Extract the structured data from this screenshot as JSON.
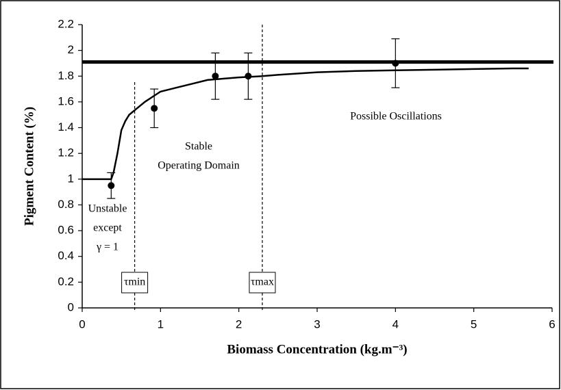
{
  "chart_data": {
    "type": "scatter",
    "x_label": "Biomass Concentration (kg.m⁻³)",
    "y_label": "Pigment Content (%)",
    "xlim": [
      0,
      6
    ],
    "xticks": [
      0,
      1,
      2,
      3,
      4,
      5,
      6
    ],
    "ylim": [
      0,
      2.2
    ],
    "yticks": [
      0,
      0.2,
      0.4,
      0.6,
      0.8,
      1,
      1.2,
      1.4,
      1.6,
      1.8,
      2,
      2.2
    ],
    "series": [
      {
        "color": "#000000",
        "x": [
          0.37,
          0.92,
          1.7,
          2.12,
          4.0
        ],
        "values": [
          0.95,
          1.55,
          1.8,
          1.8,
          1.9
        ],
        "errors": [
          0.1,
          0.15,
          0.18,
          0.18,
          0.19
        ]
      }
    ],
    "curve": {
      "color": "#000000",
      "x": [
        0,
        0.37,
        0.4,
        0.45,
        0.5,
        0.55,
        0.6,
        0.7,
        0.8,
        0.9,
        1.0,
        1.2,
        1.4,
        1.6,
        1.8,
        2.0,
        2.3,
        2.5,
        3.0,
        3.5,
        4.0,
        4.5,
        5.0,
        5.5,
        5.7
      ],
      "values": [
        1.0,
        1.0,
        1.05,
        1.2,
        1.38,
        1.45,
        1.5,
        1.55,
        1.6,
        1.64,
        1.68,
        1.71,
        1.74,
        1.77,
        1.78,
        1.79,
        1.8,
        1.81,
        1.83,
        1.84,
        1.845,
        1.85,
        1.855,
        1.86,
        1.86
      ]
    },
    "reference_line": 1.91,
    "thresholds": [
      {
        "value": 0.67,
        "label": "τmin"
      },
      {
        "value": 2.3,
        "label": "τmax"
      }
    ],
    "annotations": [
      {
        "lines": [
          "Unstable",
          "except",
          "γ = 1"
        ]
      },
      {
        "lines": [
          "Stable",
          "Operating Domain"
        ]
      },
      {
        "lines": [
          "Possible Oscillations"
        ]
      }
    ]
  }
}
